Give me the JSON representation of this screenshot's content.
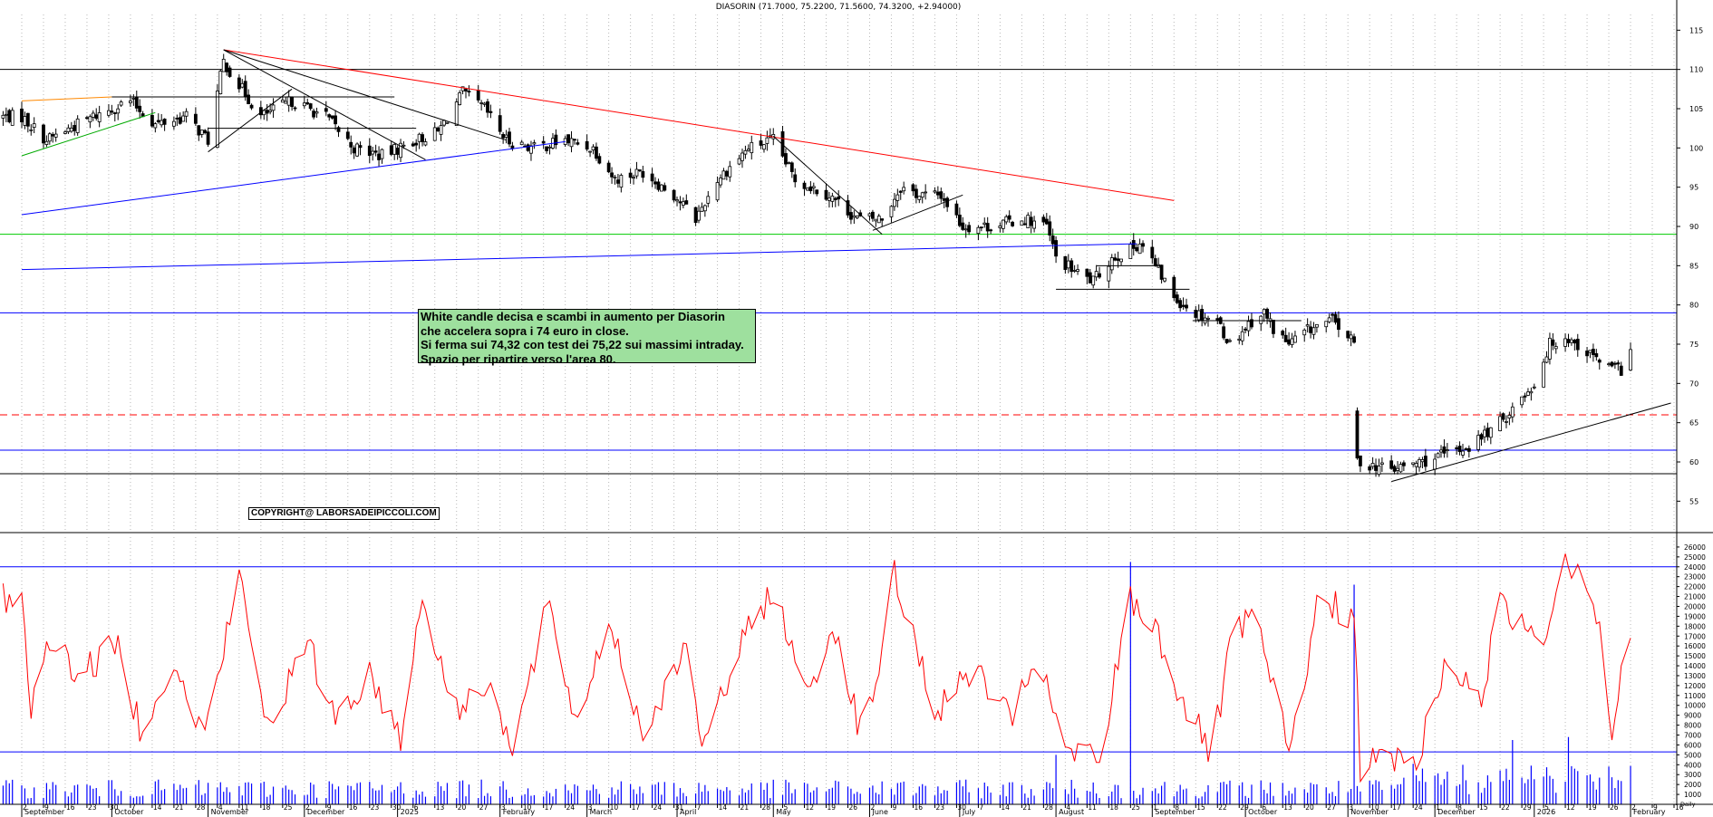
{
  "header": {
    "title": "DIASORIN (71.7000, 75.2200, 71.5600, 74.3200, +2.94000)"
  },
  "annotation": {
    "lines": [
      "White candle decisa e scambi in aumento per Diasorin",
      "che accelera sopra i 74 euro in close.",
      "Si ferma sui 74,32 con test dei 75,22 sui massimi intraday.",
      "Spazio per ripartire verso l'area 80."
    ]
  },
  "copyright": "COPYRIGHT@ LABORSADEIPICCOLI.COM",
  "colors": {
    "up": "#ffffff",
    "down": "#000000",
    "trend_red": "#ff0000",
    "trend_blue": "#0000ff",
    "support_green": "#00cc00",
    "oscillator": "#ff0000",
    "volume": "#0000ff",
    "note_bg": "#9ee09e"
  },
  "chart_data": [
    {
      "type": "candlestick",
      "title": "DIASORIN (71.7000, 75.2200, 71.5600, 74.3200, +2.94000)",
      "last_bar": {
        "open": 71.7,
        "high": 75.22,
        "low": 71.56,
        "close": 74.32,
        "change": 2.94
      },
      "ylim": [
        51,
        117
      ],
      "y_ticks": [
        55,
        60,
        65,
        70,
        75,
        80,
        85,
        90,
        95,
        100,
        105,
        110,
        115
      ],
      "horizontal_levels": [
        {
          "value": 110,
          "color": "#000000",
          "style": "solid"
        },
        {
          "value": 89,
          "color": "#00cc00",
          "style": "solid"
        },
        {
          "value": 79,
          "color": "#0000ff",
          "style": "solid"
        },
        {
          "value": 66,
          "color": "#ff0000",
          "style": "dashed"
        },
        {
          "value": 61.5,
          "color": "#0000ff",
          "style": "solid"
        },
        {
          "value": 58.5,
          "color": "#000000",
          "style": "solid"
        }
      ],
      "anchors": [
        [
          "2024-09-02",
          104
        ],
        [
          "2024-09-10",
          101
        ],
        [
          "2024-09-25",
          104
        ],
        [
          "2024-10-07",
          106
        ],
        [
          "2024-10-15",
          103
        ],
        [
          "2024-10-25",
          104
        ],
        [
          "2024-11-01",
          101
        ],
        [
          "2024-11-06",
          111
        ],
        [
          "2024-11-11",
          108
        ],
        [
          "2024-11-18",
          104
        ],
        [
          "2024-11-28",
          106
        ],
        [
          "2024-12-09",
          104
        ],
        [
          "2024-12-18",
          100
        ],
        [
          "2024-12-27",
          99
        ],
        [
          "2025-01-07",
          101
        ],
        [
          "2025-01-14",
          102
        ],
        [
          "2025-01-22",
          107
        ],
        [
          "2025-01-29",
          105
        ],
        [
          "2025-02-05",
          101
        ],
        [
          "2025-02-14",
          100
        ],
        [
          "2025-02-24",
          101
        ],
        [
          "2025-03-05",
          100
        ],
        [
          "2025-03-12",
          96
        ],
        [
          "2025-03-21",
          97
        ],
        [
          "2025-03-31",
          94
        ],
        [
          "2025-04-07",
          91
        ],
        [
          "2025-04-14",
          96
        ],
        [
          "2025-04-24",
          100
        ],
        [
          "2025-05-02",
          101
        ],
        [
          "2025-05-09",
          96
        ],
        [
          "2025-05-20",
          94
        ],
        [
          "2025-05-29",
          91
        ],
        [
          "2025-06-06",
          91
        ],
        [
          "2025-06-12",
          95
        ],
        [
          "2025-06-18",
          94
        ],
        [
          "2025-06-25",
          94
        ],
        [
          "2025-07-02",
          90
        ],
        [
          "2025-07-10",
          90
        ],
        [
          "2025-07-22",
          91
        ],
        [
          "2025-07-29",
          90
        ],
        [
          "2025-08-01",
          86
        ],
        [
          "2025-08-08",
          84
        ],
        [
          "2025-08-13",
          83
        ],
        [
          "2025-08-19",
          86
        ],
        [
          "2025-08-25",
          87
        ],
        [
          "2025-08-28",
          88
        ],
        [
          "2025-09-02",
          85
        ],
        [
          "2025-09-08",
          81
        ],
        [
          "2025-09-15",
          79
        ],
        [
          "2025-09-22",
          78
        ],
        [
          "2025-09-26",
          75
        ],
        [
          "2025-10-03",
          78
        ],
        [
          "2025-10-07",
          79
        ],
        [
          "2025-10-10",
          77
        ],
        [
          "2025-10-15",
          75
        ],
        [
          "2025-10-22",
          77
        ],
        [
          "2025-10-29",
          78
        ],
        [
          "2025-11-03",
          76
        ],
        [
          "2025-11-05",
          75
        ],
        [
          "2025-11-06",
          66
        ],
        [
          "2025-11-07",
          60
        ],
        [
          "2025-11-17",
          59
        ],
        [
          "2025-11-27",
          60
        ],
        [
          "2025-12-05",
          61
        ],
        [
          "2025-12-12",
          62
        ],
        [
          "2025-12-22",
          65
        ],
        [
          "2026-01-02",
          70
        ],
        [
          "2026-01-07",
          75
        ],
        [
          "2026-01-12",
          76
        ],
        [
          "2026-01-19",
          74
        ],
        [
          "2026-01-26",
          72
        ],
        [
          "2026-01-30",
          71.7
        ],
        [
          "2026-02-02",
          74.32
        ]
      ],
      "trendlines": [
        {
          "from": [
            "2024-11-06",
            112.5
          ],
          "to": [
            "2025-09-08",
            93.3
          ],
          "color": "#ff0000"
        },
        {
          "from": [
            "2024-09-02",
            91.5
          ],
          "to": [
            "2025-02-24",
            100.8
          ],
          "color": "#0000ff"
        },
        {
          "from": [
            "2024-09-02",
            84.5
          ],
          "to": [
            "2025-08-27",
            87.8
          ],
          "color": "#0000ff"
        },
        {
          "from": [
            "2024-11-06",
            112.5
          ],
          "to": [
            "2025-02-05",
            101
          ],
          "color": "#000000"
        },
        {
          "from": [
            "2024-11-06",
            112.5
          ],
          "to": [
            "2025-01-10",
            98.5
          ],
          "color": "#000000"
        },
        {
          "from": [
            "2025-05-02",
            101.5
          ],
          "to": [
            "2025-06-06",
            89
          ],
          "color": "#000000"
        },
        {
          "from": [
            "2025-06-03",
            89.5
          ],
          "to": [
            "2025-07-02",
            94
          ],
          "color": "#000000"
        },
        {
          "from": [
            "2024-11-01",
            99.5
          ],
          "to": [
            "2024-11-28",
            107.5
          ],
          "color": "#000000"
        },
        {
          "from": [
            "2025-11-17",
            57.5
          ],
          "to": [
            "2026-02-15",
            67.5
          ],
          "color": "#000000"
        },
        {
          "from": [
            "2024-09-02",
            99
          ],
          "to": [
            "2024-10-15",
            104.5
          ],
          "color": "#00aa00"
        },
        {
          "from": [
            "2024-09-02",
            106
          ],
          "to": [
            "2024-10-01",
            106.5
          ],
          "color": "#ff8800"
        }
      ],
      "segments": [
        {
          "from": [
            "2024-10-01",
            106.5
          ],
          "to": [
            "2024-12-31",
            106.5
          ]
        },
        {
          "from": [
            "2024-11-01",
            102.5
          ],
          "to": [
            "2025-01-07",
            102.5
          ]
        },
        {
          "from": [
            "2025-08-01",
            82
          ],
          "to": [
            "2025-09-13",
            82
          ]
        },
        {
          "from": [
            "2025-08-14",
            85
          ],
          "to": [
            "2025-09-04",
            85
          ]
        },
        {
          "from": [
            "2025-09-14",
            78
          ],
          "to": [
            "2025-10-19",
            78
          ]
        }
      ]
    },
    {
      "type": "line",
      "name": "oscillator",
      "ylim": [
        0,
        27000
      ],
      "y_ticks": [
        1000,
        2000,
        3000,
        4000,
        5000,
        6000,
        7000,
        8000,
        9000,
        10000,
        11000,
        12000,
        13000,
        14000,
        15000,
        16000,
        17000,
        18000,
        19000,
        20000,
        21000,
        22000,
        23000,
        24000,
        25000,
        26000
      ],
      "horizontal_levels": [
        24000,
        5300
      ],
      "anchors": [
        [
          "2024-09-02",
          21000
        ],
        [
          "2024-09-05",
          10000
        ],
        [
          "2024-09-12",
          17000
        ],
        [
          "2024-09-20",
          13000
        ],
        [
          "2024-10-03",
          16000
        ],
        [
          "2024-10-10",
          8000
        ],
        [
          "2024-10-20",
          14000
        ],
        [
          "2024-10-31",
          7000
        ],
        [
          "2024-11-11",
          23000
        ],
        [
          "2024-11-20",
          8000
        ],
        [
          "2024-12-03",
          16000
        ],
        [
          "2024-12-12",
          9000
        ],
        [
          "2024-12-23",
          13000
        ],
        [
          "2025-01-02",
          7000
        ],
        [
          "2025-01-09",
          21000
        ],
        [
          "2025-01-20",
          9000
        ],
        [
          "2025-01-30",
          13000
        ],
        [
          "2025-02-07",
          5000
        ],
        [
          "2025-02-18",
          20000
        ],
        [
          "2025-02-28",
          8000
        ],
        [
          "2025-03-10",
          19000
        ],
        [
          "2025-03-21",
          7000
        ],
        [
          "2025-04-03",
          16000
        ],
        [
          "2025-04-10",
          5500
        ],
        [
          "2025-04-20",
          15000
        ],
        [
          "2025-05-02",
          22000
        ],
        [
          "2025-05-12",
          11000
        ],
        [
          "2025-05-22",
          18000
        ],
        [
          "2025-05-31",
          6000
        ],
        [
          "2025-06-10",
          23000
        ],
        [
          "2025-06-24",
          9000
        ],
        [
          "2025-07-05",
          14000
        ],
        [
          "2025-07-18",
          8000
        ],
        [
          "2025-07-25",
          15000
        ],
        [
          "2025-08-05",
          5000
        ],
        [
          "2025-08-16",
          4500
        ],
        [
          "2025-08-24",
          21000
        ],
        [
          "2025-09-02",
          18000
        ],
        [
          "2025-09-10",
          11000
        ],
        [
          "2025-09-20",
          5000
        ],
        [
          "2025-09-27",
          17000
        ],
        [
          "2025-10-04",
          19000
        ],
        [
          "2025-10-15",
          5000
        ],
        [
          "2025-10-25",
          21000
        ],
        [
          "2025-11-05",
          19000
        ],
        [
          "2025-11-07",
          3000
        ],
        [
          "2025-11-14",
          5000
        ],
        [
          "2025-11-25",
          4000
        ],
        [
          "2025-12-05",
          15000
        ],
        [
          "2025-12-15",
          10000
        ],
        [
          "2025-12-22",
          20000
        ],
        [
          "2026-01-05",
          17000
        ],
        [
          "2026-01-12",
          25000
        ],
        [
          "2026-01-19",
          23000
        ],
        [
          "2026-01-23",
          18000
        ],
        [
          "2026-01-27",
          7000
        ],
        [
          "2026-02-02",
          18000
        ]
      ]
    },
    {
      "type": "bar",
      "name": "volume",
      "spikes": [
        [
          "2024-11-03",
          4200
        ],
        [
          "2025-08-25",
          24500
        ],
        [
          "2025-11-05",
          22200
        ],
        [
          "2025-08-01",
          5000
        ],
        [
          "2026-01-13",
          6800
        ],
        [
          "2025-12-26",
          6500
        ]
      ]
    }
  ],
  "x_axis": {
    "start": "2024-08-26",
    "end": "2026-02-16",
    "months": [
      [
        "2024-09-02",
        "September"
      ],
      [
        "2024-10-01",
        "October"
      ],
      [
        "2024-11-01",
        "November"
      ],
      [
        "2024-12-02",
        "December"
      ],
      [
        "2025-01-01",
        "2025"
      ],
      [
        "2025-02-03",
        "February"
      ],
      [
        "2025-03-03",
        "March"
      ],
      [
        "2025-04-01",
        "April"
      ],
      [
        "2025-05-02",
        "May"
      ],
      [
        "2025-06-02",
        "June"
      ],
      [
        "2025-07-01",
        "July"
      ],
      [
        "2025-08-01",
        "August"
      ],
      [
        "2025-09-01",
        "September"
      ],
      [
        "2025-10-01",
        "October"
      ],
      [
        "2025-11-03",
        "November"
      ],
      [
        "2025-12-01",
        "December"
      ],
      [
        "2026-01-02",
        "2026"
      ],
      [
        "2026-02-02",
        "February"
      ]
    ],
    "day_ticks": [
      [
        "2024-09-02",
        "2"
      ],
      [
        "2024-09-09",
        "9"
      ],
      [
        "2024-09-16",
        "16"
      ],
      [
        "2024-09-23",
        "23"
      ],
      [
        "2024-09-30",
        "30"
      ],
      [
        "2024-10-07",
        "7"
      ],
      [
        "2024-10-14",
        "14"
      ],
      [
        "2024-10-21",
        "21"
      ],
      [
        "2024-10-28",
        "28"
      ],
      [
        "2024-11-04",
        "4"
      ],
      [
        "2024-11-11",
        "11"
      ],
      [
        "2024-11-18",
        "18"
      ],
      [
        "2024-11-25",
        "25"
      ],
      [
        "2024-12-02",
        "2"
      ],
      [
        "2024-12-09",
        "9"
      ],
      [
        "2024-12-16",
        "16"
      ],
      [
        "2024-12-23",
        "23"
      ],
      [
        "2024-12-30",
        "30"
      ],
      [
        "2025-01-06",
        "6"
      ],
      [
        "2025-01-13",
        "13"
      ],
      [
        "2025-01-20",
        "20"
      ],
      [
        "2025-01-27",
        "27"
      ],
      [
        "2025-02-03",
        "3"
      ],
      [
        "2025-02-10",
        "10"
      ],
      [
        "2025-02-17",
        "17"
      ],
      [
        "2025-02-24",
        "24"
      ],
      [
        "2025-03-03",
        "3"
      ],
      [
        "2025-03-10",
        "10"
      ],
      [
        "2025-03-17",
        "17"
      ],
      [
        "2025-03-24",
        "24"
      ],
      [
        "2025-03-31",
        "31"
      ],
      [
        "2025-04-07",
        "7"
      ],
      [
        "2025-04-14",
        "14"
      ],
      [
        "2025-04-21",
        "21"
      ],
      [
        "2025-04-28",
        "28"
      ],
      [
        "2025-05-05",
        "5"
      ],
      [
        "2025-05-12",
        "12"
      ],
      [
        "2025-05-19",
        "19"
      ],
      [
        "2025-05-26",
        "26"
      ],
      [
        "2025-06-02",
        "2"
      ],
      [
        "2025-06-09",
        "9"
      ],
      [
        "2025-06-16",
        "16"
      ],
      [
        "2025-06-23",
        "23"
      ],
      [
        "2025-06-30",
        "30"
      ],
      [
        "2025-07-07",
        "7"
      ],
      [
        "2025-07-14",
        "14"
      ],
      [
        "2025-07-21",
        "21"
      ],
      [
        "2025-07-28",
        "28"
      ],
      [
        "2025-08-04",
        "4"
      ],
      [
        "2025-08-11",
        "11"
      ],
      [
        "2025-08-18",
        "18"
      ],
      [
        "2025-08-25",
        "25"
      ],
      [
        "2025-09-01",
        "1"
      ],
      [
        "2025-09-08",
        "8"
      ],
      [
        "2025-09-15",
        "15"
      ],
      [
        "2025-09-22",
        "22"
      ],
      [
        "2025-09-29",
        "29"
      ],
      [
        "2025-10-06",
        "6"
      ],
      [
        "2025-10-13",
        "13"
      ],
      [
        "2025-10-20",
        "20"
      ],
      [
        "2025-10-27",
        "27"
      ],
      [
        "2025-11-03",
        "3"
      ],
      [
        "2025-11-10",
        "10"
      ],
      [
        "2025-11-17",
        "17"
      ],
      [
        "2025-11-24",
        "24"
      ],
      [
        "2025-12-01",
        "1"
      ],
      [
        "2025-12-08",
        "8"
      ],
      [
        "2025-12-15",
        "15"
      ],
      [
        "2025-12-22",
        "22"
      ],
      [
        "2025-12-29",
        "29"
      ],
      [
        "2026-01-05",
        "5"
      ],
      [
        "2026-01-12",
        "12"
      ],
      [
        "2026-01-19",
        "19"
      ],
      [
        "2026-01-26",
        "26"
      ],
      [
        "2026-02-02",
        "2"
      ],
      [
        "2026-02-09",
        "9"
      ],
      [
        "2026-02-16",
        "16"
      ]
    ],
    "corner_label": "Daily"
  }
}
